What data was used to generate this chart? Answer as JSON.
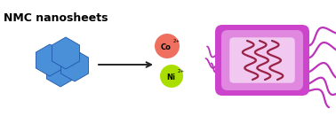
{
  "title": "NMC nanosheets",
  "title_fontsize": 9,
  "title_fontweight": "bold",
  "bg_color": "#ffffff",
  "hex_color_face": "#4a90d9",
  "hex_color_edge": "#2255aa",
  "arrow_color": "#222222",
  "co_color": "#f07060",
  "co_label": "Co",
  "co_superscript": "2+",
  "ni_color": "#aadd00",
  "ni_label": "Ni",
  "ni_superscript": "2+",
  "bacterium_outer_color": "#cc44cc",
  "bacterium_mid_color": "#e088e0",
  "bacterium_inner_color": "#f0c8f0",
  "dna_color": "#992244",
  "flagella_color": "#bb33bb",
  "ion_label_fontsize": 6
}
